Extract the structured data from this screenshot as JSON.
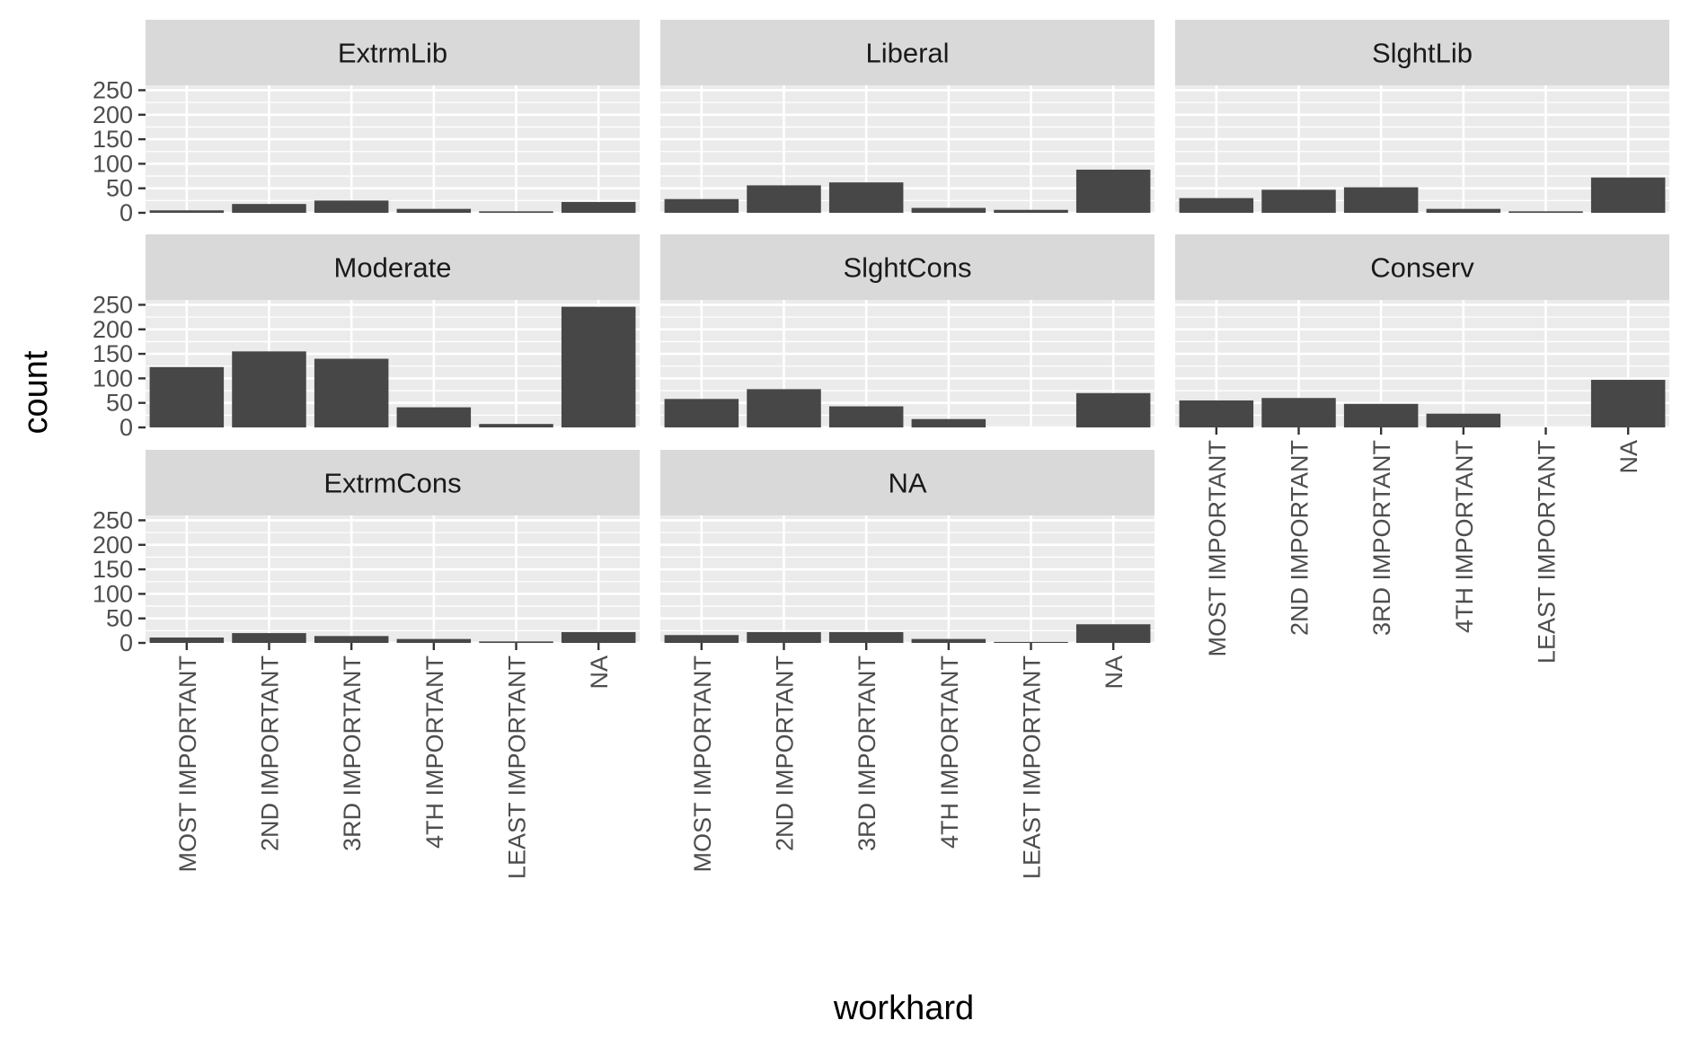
{
  "chart_data": {
    "type": "bar",
    "xlabel": "workhard",
    "ylabel": "count",
    "categories": [
      "MOST IMPORTANT",
      "2ND IMPORTANT",
      "3RD IMPORTANT",
      "4TH IMPORTANT",
      "LEAST IMPORTANT",
      "NA"
    ],
    "y_ticks": [
      0,
      50,
      100,
      150,
      200,
      250
    ],
    "ylim": [
      0,
      260
    ],
    "grid": true,
    "colors": {
      "bar": "#474747",
      "panel": "#ebebeb",
      "strip": "#d9d9d9",
      "grid": "#ffffff"
    },
    "panels": [
      {
        "name": "ExtrmLib",
        "values": [
          5,
          18,
          25,
          8,
          3,
          22
        ]
      },
      {
        "name": "Liberal",
        "values": [
          28,
          56,
          62,
          10,
          6,
          88
        ]
      },
      {
        "name": "SlghtLib",
        "values": [
          30,
          47,
          52,
          8,
          3,
          72
        ]
      },
      {
        "name": "Moderate",
        "values": [
          123,
          155,
          140,
          41,
          7,
          246
        ]
      },
      {
        "name": "SlghtCons",
        "values": [
          58,
          78,
          43,
          17,
          0,
          70
        ]
      },
      {
        "name": "Conserv",
        "values": [
          55,
          60,
          48,
          28,
          0,
          97
        ]
      },
      {
        "name": "ExtrmCons",
        "values": [
          11,
          20,
          14,
          8,
          3,
          22
        ]
      },
      {
        "name": "NA",
        "values": [
          16,
          22,
          22,
          8,
          2,
          38
        ]
      }
    ]
  }
}
